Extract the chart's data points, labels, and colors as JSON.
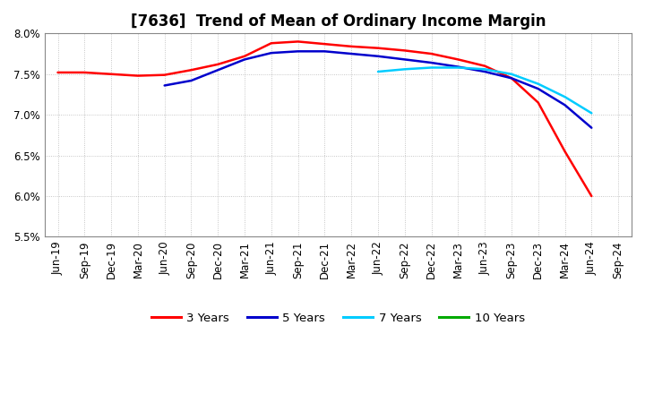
{
  "title": "[7636]  Trend of Mean of Ordinary Income Margin",
  "x_labels": [
    "Jun-19",
    "Sep-19",
    "Dec-19",
    "Mar-20",
    "Jun-20",
    "Sep-20",
    "Dec-20",
    "Mar-21",
    "Jun-21",
    "Sep-21",
    "Dec-21",
    "Mar-22",
    "Jun-22",
    "Sep-22",
    "Dec-22",
    "Mar-23",
    "Jun-23",
    "Sep-23",
    "Dec-23",
    "Mar-24",
    "Jun-24",
    "Sep-24"
  ],
  "y_min": 5.5,
  "y_max": 8.0,
  "y_ticks": [
    5.5,
    6.0,
    6.5,
    7.0,
    7.5,
    8.0
  ],
  "series": {
    "3 Years": {
      "color": "#ff0000",
      "values": [
        7.52,
        7.52,
        7.5,
        7.48,
        7.49,
        7.55,
        7.62,
        7.72,
        7.88,
        7.9,
        7.87,
        7.84,
        7.82,
        7.79,
        7.75,
        7.68,
        7.6,
        7.45,
        7.15,
        6.55,
        6.0,
        null
      ]
    },
    "5 Years": {
      "color": "#0000cc",
      "values": [
        null,
        null,
        null,
        null,
        7.36,
        7.42,
        7.55,
        7.68,
        7.76,
        7.78,
        7.78,
        7.75,
        7.72,
        7.68,
        7.64,
        7.59,
        7.53,
        7.45,
        7.32,
        7.12,
        6.84,
        null
      ]
    },
    "7 Years": {
      "color": "#00ccff",
      "values": [
        null,
        null,
        null,
        null,
        null,
        null,
        null,
        null,
        null,
        null,
        null,
        null,
        7.53,
        7.56,
        7.58,
        7.58,
        7.56,
        7.5,
        7.38,
        7.22,
        7.02,
        null
      ]
    },
    "10 Years": {
      "color": "#00aa00",
      "values": [
        null,
        null,
        null,
        null,
        null,
        null,
        null,
        null,
        null,
        null,
        null,
        null,
        null,
        null,
        null,
        null,
        null,
        null,
        null,
        null,
        null,
        null
      ]
    }
  },
  "legend_labels": [
    "3 Years",
    "5 Years",
    "7 Years",
    "10 Years"
  ],
  "legend_colors": [
    "#ff0000",
    "#0000cc",
    "#00ccff",
    "#00aa00"
  ],
  "background_color": "#ffffff",
  "plot_bg_color": "#ffffff",
  "grid_color": "#999999",
  "title_fontsize": 12,
  "axis_fontsize": 8.5,
  "legend_fontsize": 9.5,
  "linewidth": 1.8
}
